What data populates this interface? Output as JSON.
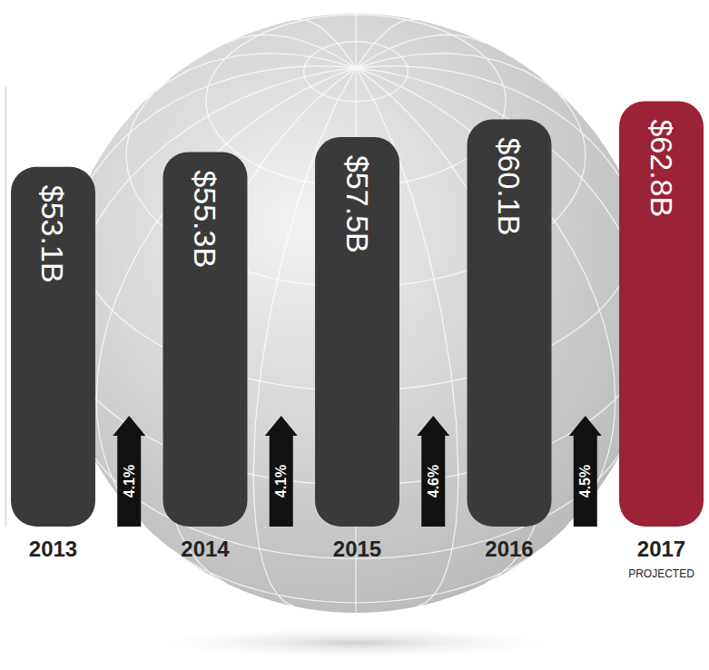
{
  "chart_data": {
    "type": "bar",
    "categories": [
      "2013",
      "2014",
      "2015",
      "2016",
      "2017"
    ],
    "values": [
      53.1,
      55.3,
      57.5,
      60.1,
      62.8
    ],
    "value_labels": [
      "$53.1B",
      "$55.3B",
      "$57.5B",
      "$60.1B",
      "$62.8B"
    ],
    "colors": [
      "#3a3a3a",
      "#3a3a3a",
      "#3a3a3a",
      "#3a3a3a",
      "#9b2335"
    ],
    "ylim": [
      0,
      65
    ],
    "yticks": [],
    "tick_labels": "x",
    "data_labels": true,
    "growth": [
      4.1,
      4.1,
      4.6,
      4.5
    ],
    "growth_labels": [
      "4.1%",
      "4.1%",
      "4.6%",
      "4.5%"
    ],
    "annotations": [
      {
        "text": "PROJECTED",
        "category": "2017"
      }
    ]
  }
}
